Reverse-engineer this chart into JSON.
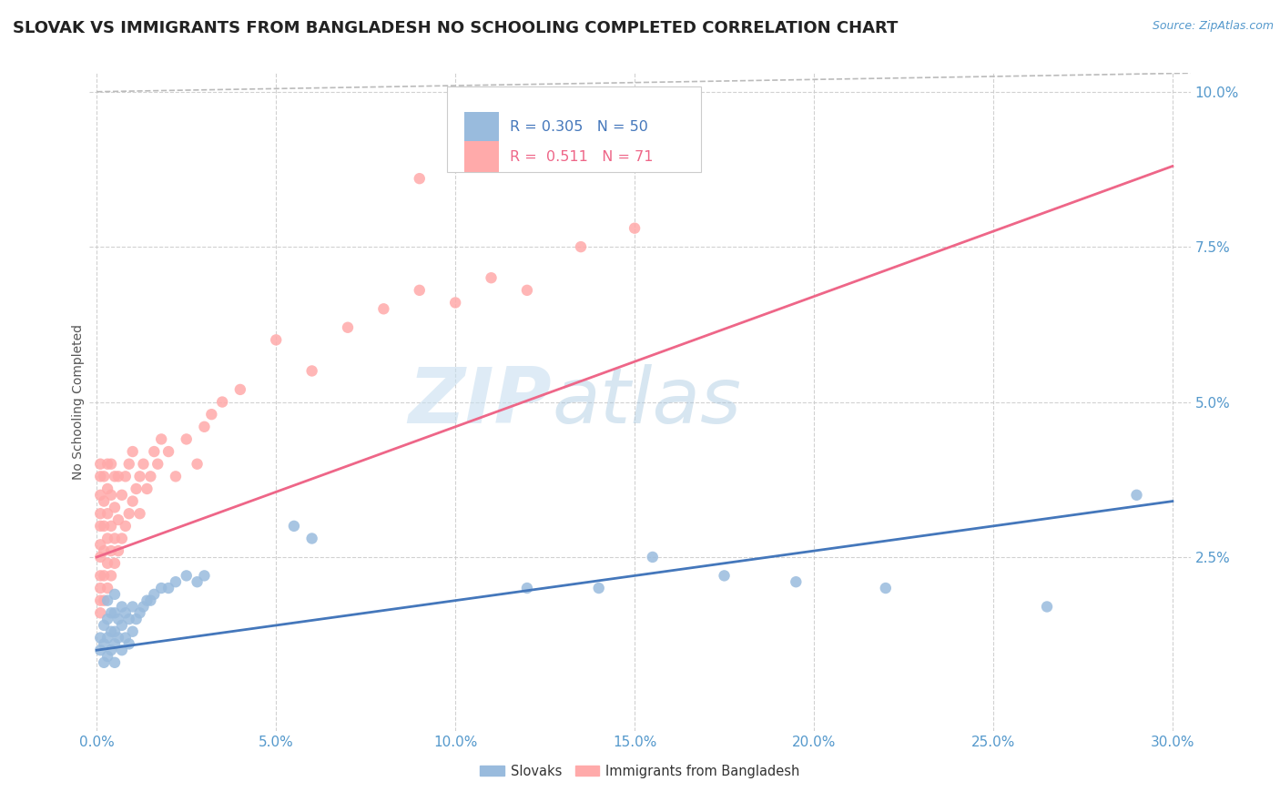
{
  "title": "SLOVAK VS IMMIGRANTS FROM BANGLADESH NO SCHOOLING COMPLETED CORRELATION CHART",
  "source": "Source: ZipAtlas.com",
  "xlabel_ticks": [
    "0.0%",
    "5.0%",
    "10.0%",
    "15.0%",
    "20.0%",
    "25.0%",
    "30.0%"
  ],
  "xlabel_vals": [
    0.0,
    0.05,
    0.1,
    0.15,
    0.2,
    0.25,
    0.3
  ],
  "ylabel_ticks": [
    "2.5%",
    "5.0%",
    "7.5%",
    "10.0%"
  ],
  "ylabel_vals": [
    0.025,
    0.05,
    0.075,
    0.1
  ],
  "xlim": [
    -0.002,
    0.305
  ],
  "ylim": [
    -0.003,
    0.103
  ],
  "ylabel": "No Schooling Completed",
  "blue_R": 0.305,
  "blue_N": 50,
  "pink_R": 0.511,
  "pink_N": 71,
  "blue_color": "#99BBDD",
  "pink_color": "#FFAAAA",
  "blue_line_color": "#4477BB",
  "pink_line_color": "#EE6688",
  "legend_blue_label": "Slovaks",
  "legend_pink_label": "Immigrants from Bangladesh",
  "blue_scatter_x": [
    0.001,
    0.001,
    0.002,
    0.002,
    0.002,
    0.003,
    0.003,
    0.003,
    0.003,
    0.004,
    0.004,
    0.004,
    0.005,
    0.005,
    0.005,
    0.005,
    0.005,
    0.006,
    0.006,
    0.007,
    0.007,
    0.007,
    0.008,
    0.008,
    0.009,
    0.009,
    0.01,
    0.01,
    0.011,
    0.012,
    0.013,
    0.014,
    0.015,
    0.016,
    0.018,
    0.02,
    0.022,
    0.025,
    0.028,
    0.03,
    0.055,
    0.06,
    0.12,
    0.14,
    0.155,
    0.175,
    0.195,
    0.22,
    0.265,
    0.29
  ],
  "blue_scatter_y": [
    0.01,
    0.012,
    0.008,
    0.011,
    0.014,
    0.009,
    0.012,
    0.015,
    0.018,
    0.01,
    0.013,
    0.016,
    0.008,
    0.011,
    0.013,
    0.016,
    0.019,
    0.012,
    0.015,
    0.01,
    0.014,
    0.017,
    0.012,
    0.016,
    0.011,
    0.015,
    0.013,
    0.017,
    0.015,
    0.016,
    0.017,
    0.018,
    0.018,
    0.019,
    0.02,
    0.02,
    0.021,
    0.022,
    0.021,
    0.022,
    0.03,
    0.028,
    0.02,
    0.02,
    0.025,
    0.022,
    0.021,
    0.02,
    0.017,
    0.035
  ],
  "pink_scatter_x": [
    0.001,
    0.001,
    0.001,
    0.001,
    0.001,
    0.001,
    0.001,
    0.001,
    0.001,
    0.001,
    0.001,
    0.002,
    0.002,
    0.002,
    0.002,
    0.002,
    0.002,
    0.003,
    0.003,
    0.003,
    0.003,
    0.003,
    0.003,
    0.004,
    0.004,
    0.004,
    0.004,
    0.004,
    0.005,
    0.005,
    0.005,
    0.005,
    0.006,
    0.006,
    0.006,
    0.007,
    0.007,
    0.008,
    0.008,
    0.009,
    0.009,
    0.01,
    0.01,
    0.011,
    0.012,
    0.012,
    0.013,
    0.014,
    0.015,
    0.016,
    0.017,
    0.018,
    0.02,
    0.022,
    0.025,
    0.028,
    0.03,
    0.032,
    0.035,
    0.04,
    0.05,
    0.06,
    0.07,
    0.08,
    0.09,
    0.1,
    0.11,
    0.12,
    0.135,
    0.15,
    0.09
  ],
  "pink_scatter_y": [
    0.016,
    0.018,
    0.02,
    0.022,
    0.025,
    0.027,
    0.03,
    0.032,
    0.035,
    0.038,
    0.04,
    0.018,
    0.022,
    0.026,
    0.03,
    0.034,
    0.038,
    0.02,
    0.024,
    0.028,
    0.032,
    0.036,
    0.04,
    0.022,
    0.026,
    0.03,
    0.035,
    0.04,
    0.024,
    0.028,
    0.033,
    0.038,
    0.026,
    0.031,
    0.038,
    0.028,
    0.035,
    0.03,
    0.038,
    0.032,
    0.04,
    0.034,
    0.042,
    0.036,
    0.038,
    0.032,
    0.04,
    0.036,
    0.038,
    0.042,
    0.04,
    0.044,
    0.042,
    0.038,
    0.044,
    0.04,
    0.046,
    0.048,
    0.05,
    0.052,
    0.06,
    0.055,
    0.062,
    0.065,
    0.068,
    0.066,
    0.07,
    0.068,
    0.075,
    0.078,
    0.086
  ],
  "blue_line_x": [
    0.0,
    0.3
  ],
  "blue_line_y": [
    0.01,
    0.034
  ],
  "pink_line_x": [
    0.0,
    0.3
  ],
  "pink_line_y": [
    0.025,
    0.088
  ],
  "diag_line_x": [
    0.0,
    0.305
  ],
  "diag_line_y": [
    0.1,
    0.103
  ],
  "watermark_zip": "ZIP",
  "watermark_atlas": "atlas",
  "title_fontsize": 13,
  "label_fontsize": 10,
  "tick_fontsize": 11,
  "bg_color": "#FFFFFF",
  "grid_color": "#CCCCCC"
}
